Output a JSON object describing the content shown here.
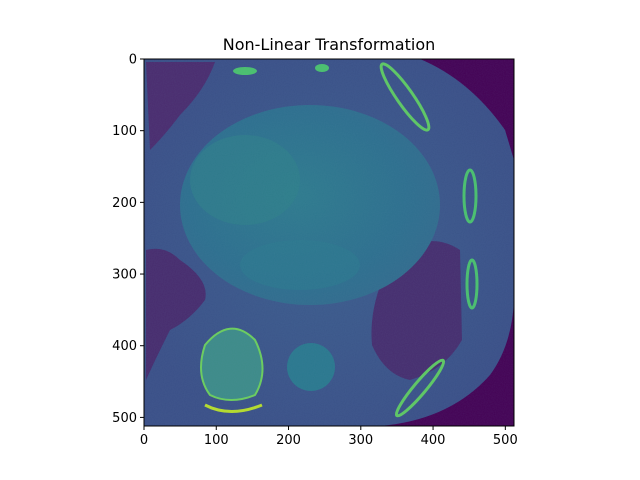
{
  "chart_data": {
    "type": "heatmap",
    "title": "Non-Linear Transformation",
    "colormap": "viridis",
    "image_width": 512,
    "image_height": 512,
    "xlim": [
      0,
      512
    ],
    "ylim": [
      512,
      0
    ],
    "xticks": [
      0,
      100,
      200,
      300,
      400,
      500
    ],
    "yticks": [
      0,
      100,
      200,
      300,
      400,
      500
    ],
    "xlabel": "",
    "ylabel": "",
    "grid": false
  },
  "colors": {
    "background_purple": "#440154",
    "body_blue": "#3b528b",
    "tissue_teal": "#2f6f8e",
    "heart_teal": "#2a788e",
    "bone_green": "#5ec962",
    "bone_yellow": "#c8e020"
  }
}
